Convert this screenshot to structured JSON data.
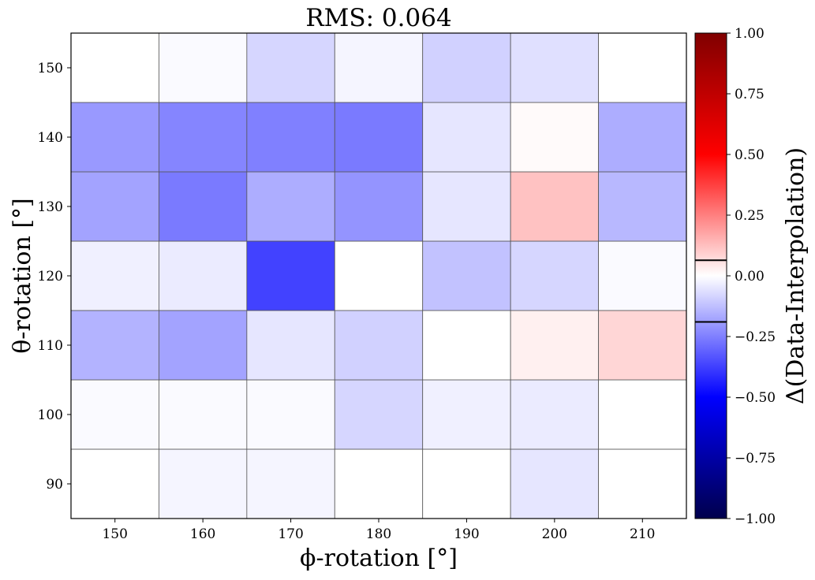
{
  "chart_data": {
    "type": "heatmap",
    "title": "RMS: 0.064",
    "xlabel": "ϕ-rotation [°]",
    "ylabel": "θ-rotation [°]",
    "x_categories": [
      "150",
      "160",
      "170",
      "180",
      "190",
      "200",
      "210"
    ],
    "y_categories": [
      "90",
      "100",
      "110",
      "120",
      "130",
      "140",
      "150"
    ],
    "x_range": [
      145,
      215
    ],
    "y_range": [
      85,
      155
    ],
    "values": [
      [
        0.0,
        -0.02,
        -0.02,
        0.0,
        0.0,
        -0.05,
        0.0
      ],
      [
        -0.01,
        -0.01,
        -0.01,
        -0.08,
        -0.03,
        -0.04,
        0.0
      ],
      [
        -0.15,
        -0.18,
        -0.05,
        -0.09,
        0.0,
        0.03,
        0.08
      ],
      [
        -0.03,
        -0.04,
        -0.37,
        0.0,
        -0.12,
        -0.08,
        -0.01
      ],
      [
        -0.18,
        -0.26,
        -0.16,
        -0.21,
        -0.05,
        0.12,
        -0.14
      ],
      [
        -0.2,
        -0.24,
        -0.25,
        -0.26,
        -0.05,
        0.01,
        -0.16
      ],
      [
        0.0,
        -0.01,
        -0.08,
        -0.02,
        -0.09,
        -0.06,
        0.0
      ]
    ],
    "colorbar": {
      "label": "Δ(Data-Interpolation)",
      "range": [
        -1.0,
        1.0
      ],
      "ticks": [
        "1.00",
        "0.75",
        "0.50",
        "0.25",
        "0.00",
        "−0.25",
        "−0.50",
        "−0.75",
        "−1.00"
      ],
      "colormap": "seismic",
      "band_markers": [
        0.064,
        -0.19
      ]
    },
    "grid": true
  }
}
